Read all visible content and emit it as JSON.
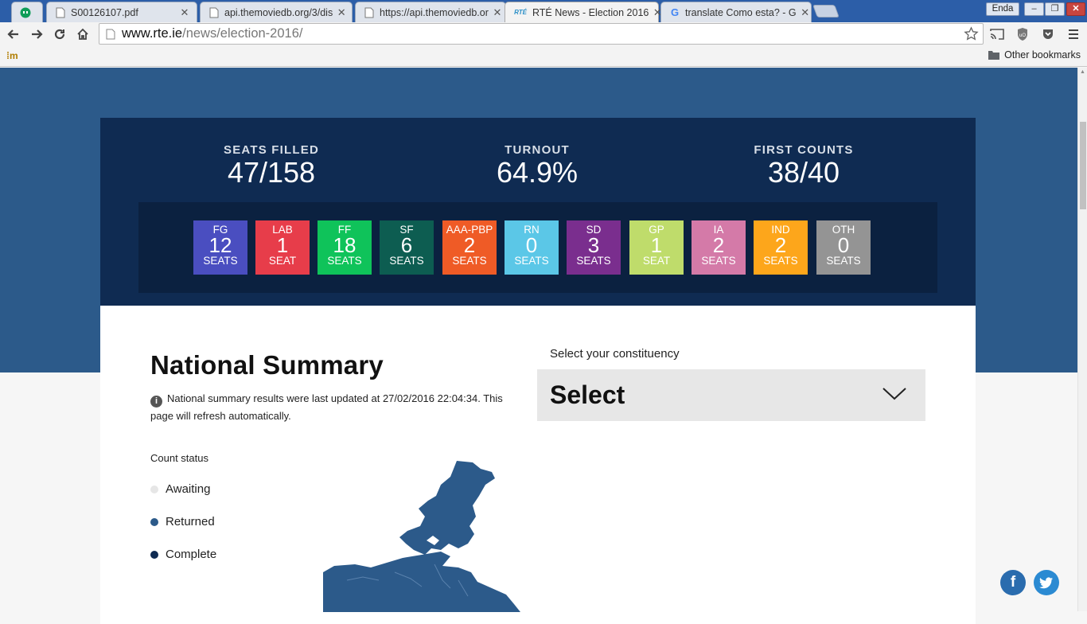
{
  "browser": {
    "tabs": [
      {
        "label": "",
        "favicon": "hangouts-icon"
      },
      {
        "label": "S00126107.pdf",
        "favicon": "document-icon"
      },
      {
        "label": "api.themoviedb.org/3/dis",
        "favicon": "document-icon"
      },
      {
        "label": "https://api.themoviedb.or",
        "favicon": "document-icon"
      },
      {
        "label": "RTÉ News - Election 2016",
        "favicon": "rte-icon",
        "active": true
      },
      {
        "label": "translate Como esta? - G",
        "favicon": "google-icon"
      }
    ],
    "profile_name": "Enda",
    "url_host": "www.rte.ie",
    "url_path": "/news/election-2016/",
    "bookmarks": {
      "other": "Other bookmarks"
    }
  },
  "stats": [
    {
      "label": "SEATS FILLED",
      "value": "47/158"
    },
    {
      "label": "TURNOUT",
      "value": "64.9%"
    },
    {
      "label": "FIRST COUNTS",
      "value": "38/40"
    }
  ],
  "parties": [
    {
      "abbr": "FG",
      "seats": "12",
      "unit": "SEATS",
      "color": "#4a4ec0"
    },
    {
      "abbr": "LAB",
      "seats": "1",
      "unit": "SEAT",
      "color": "#e73d4a"
    },
    {
      "abbr": "FF",
      "seats": "18",
      "unit": "SEATS",
      "color": "#0fc35a"
    },
    {
      "abbr": "SF",
      "seats": "6",
      "unit": "SEATS",
      "color": "#0d5d51"
    },
    {
      "abbr": "AAA-PBP",
      "seats": "2",
      "unit": "SEATS",
      "color": "#ef5b26"
    },
    {
      "abbr": "RN",
      "seats": "0",
      "unit": "SEATS",
      "color": "#5bc7e7"
    },
    {
      "abbr": "SD",
      "seats": "3",
      "unit": "SEATS",
      "color": "#7a2e8e"
    },
    {
      "abbr": "GP",
      "seats": "1",
      "unit": "SEAT",
      "color": "#bfdc6b"
    },
    {
      "abbr": "IA",
      "seats": "2",
      "unit": "SEATS",
      "color": "#d47aa8"
    },
    {
      "abbr": "IND",
      "seats": "2",
      "unit": "SEATS",
      "color": "#fda61b"
    },
    {
      "abbr": "OTH",
      "seats": "0",
      "unit": "SEATS",
      "color": "#949494"
    }
  ],
  "summary": {
    "title": "National Summary",
    "info": "National summary results were last updated at 27/02/2016 22:04:34. This page will refresh automatically.",
    "count_status_label": "Count status",
    "legend": [
      {
        "label": "Awaiting",
        "color": "#e6e6e6"
      },
      {
        "label": "Returned",
        "color": "#2c5a8a"
      },
      {
        "label": "Complete",
        "color": "#0f2b52"
      }
    ]
  },
  "constituency": {
    "label": "Select your constituency",
    "selected": "Select"
  },
  "colors": {
    "hero": "#2c5a8a",
    "panel": "#0f2b52",
    "map": "#2c5a8a"
  }
}
